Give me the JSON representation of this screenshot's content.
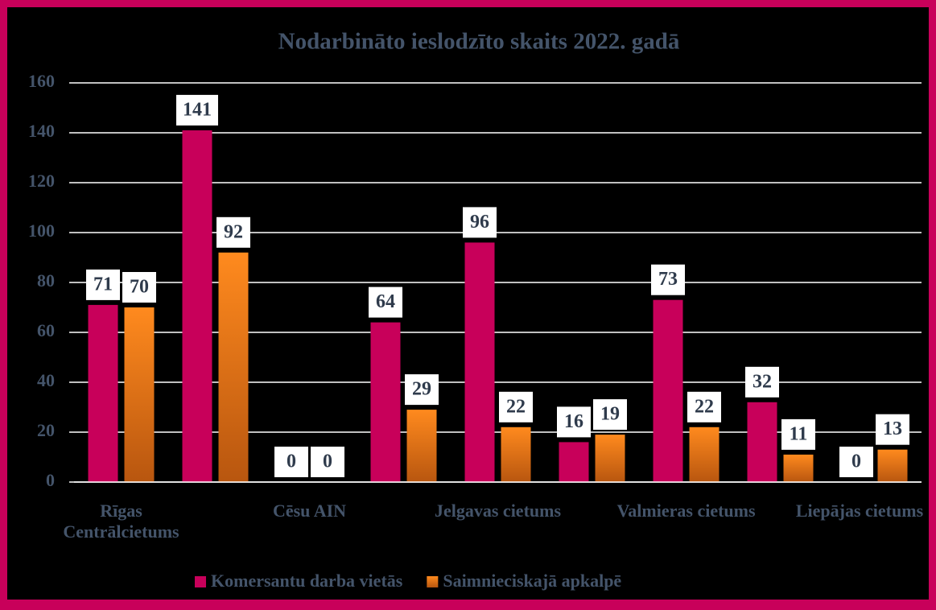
{
  "chart_data": {
    "type": "bar",
    "title": "Nodarbināto ieslodzīto skaits 2022. gadā",
    "categories": [
      "Rīgas Centrālcietums",
      null,
      "Cēsu AIN",
      null,
      "Jelgavas cietums",
      null,
      "Valmieras cietums",
      null,
      "Liepājas cietums"
    ],
    "series": [
      {
        "name": "Komersantu darba vietās",
        "color": "#c8005a",
        "values": [
          71,
          141,
          0,
          64,
          96,
          16,
          73,
          32,
          0
        ]
      },
      {
        "name": "Saimnieciskajā apkalpē",
        "color": "#f07d14",
        "values": [
          70,
          92,
          0,
          29,
          22,
          19,
          22,
          11,
          13
        ]
      }
    ],
    "ylim": [
      0,
      160
    ],
    "yticks": [
      0,
      20,
      40,
      60,
      80,
      100,
      120,
      140,
      160
    ],
    "grid": true,
    "legend": "bottom"
  }
}
